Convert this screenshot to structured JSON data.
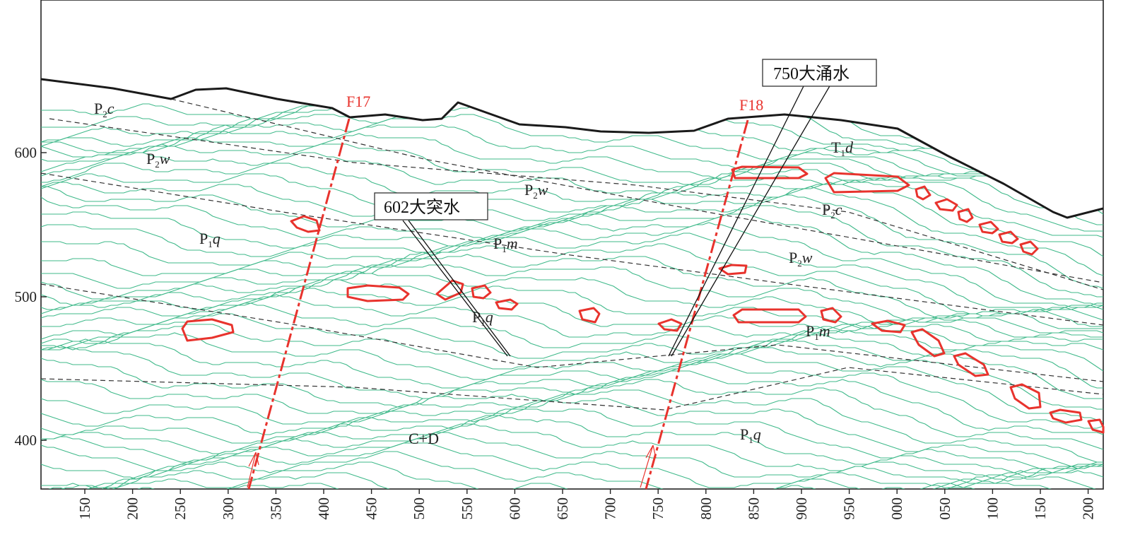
{
  "y_axis": {
    "ticks": [
      "600",
      "500",
      "400"
    ]
  },
  "x_axis": {
    "ticks": [
      "150",
      "200",
      "250",
      "300",
      "350",
      "400",
      "450",
      "500",
      "550",
      "600",
      "650",
      "700",
      "750",
      "800",
      "850",
      "900",
      "950",
      "000",
      "050",
      "100",
      "150",
      "200"
    ]
  },
  "faults": [
    {
      "label": "F17"
    },
    {
      "label": "F18"
    }
  ],
  "callouts": [
    {
      "label": "750大涌水"
    },
    {
      "label": "602大突水"
    }
  ],
  "strata": [
    {
      "base": "P",
      "sub": "2",
      "letter": "c"
    },
    {
      "base": "P",
      "sub": "2",
      "letter": "w"
    },
    {
      "base": "P",
      "sub": "1",
      "letter": "q"
    },
    {
      "base": "P",
      "sub": "2",
      "letter": "w"
    },
    {
      "base": "P",
      "sub": "1",
      "letter": "m"
    },
    {
      "base": "P",
      "sub": "1",
      "letter": "q"
    },
    {
      "base": "T",
      "sub": "1",
      "letter": "d"
    },
    {
      "base": "P",
      "sub": "2",
      "letter": "c"
    },
    {
      "base": "P",
      "sub": "2",
      "letter": "w"
    },
    {
      "base": "P",
      "sub": "1",
      "letter": "m"
    },
    {
      "base": "P",
      "sub": "1",
      "letter": "q"
    },
    {
      "base": "C+D",
      "sub": "",
      "letter": ""
    }
  ],
  "colors": {
    "contour": "#3fb98a",
    "fault": "#e8332d",
    "anomaly": "#e8332d",
    "surface": "#1a1a1a",
    "boundary": "#333333"
  }
}
